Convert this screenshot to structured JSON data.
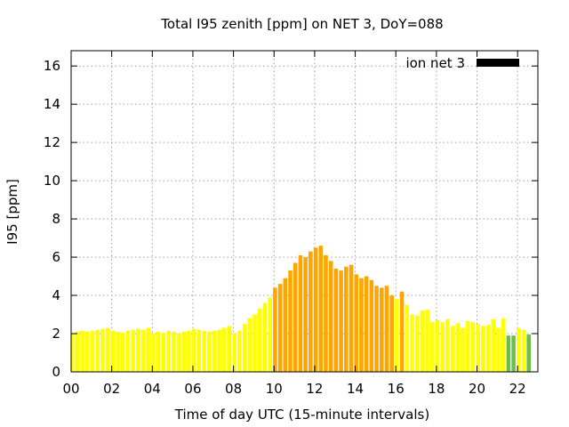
{
  "chart_data": {
    "type": "bar",
    "title": "Total I95 zenith [ppm] on NET 3, DoY=088",
    "xlabel": "Time of day UTC (15-minute intervals)",
    "ylabel": "I95 [ppm]",
    "xlim": [
      0,
      23
    ],
    "ylim": [
      0,
      16.8
    ],
    "xticks": [
      "00",
      "02",
      "04",
      "06",
      "08",
      "10",
      "12",
      "14",
      "16",
      "18",
      "20",
      "22"
    ],
    "xtick_values": [
      0,
      2,
      4,
      6,
      8,
      10,
      12,
      14,
      16,
      18,
      20,
      22
    ],
    "yticks": [
      "0",
      "2",
      "4",
      "6",
      "8",
      "10",
      "12",
      "14",
      "16"
    ],
    "ytick_values": [
      0,
      2,
      4,
      6,
      8,
      10,
      12,
      14,
      16
    ],
    "grid": true,
    "bar_width_hours": 0.2,
    "legend": {
      "label": "ion net 3",
      "color": "#000000",
      "position": "top-right"
    },
    "colors": {
      "yellow": "#ffff00",
      "orange": "#ffa500",
      "green": "#6abf4b"
    },
    "color_rule": "yellow when value < 4.1 ppm (except two isolated bars), orange when value >= 4.1 ppm, green for low-value bars late in the day",
    "x": [
      0.05,
      0.3,
      0.55,
      0.8,
      1.05,
      1.3,
      1.55,
      1.8,
      2.05,
      2.3,
      2.55,
      2.8,
      3.05,
      3.3,
      3.55,
      3.8,
      4.05,
      4.3,
      4.55,
      4.8,
      5.05,
      5.3,
      5.55,
      5.8,
      6.05,
      6.3,
      6.55,
      6.8,
      7.05,
      7.3,
      7.55,
      7.8,
      8.05,
      8.3,
      8.55,
      8.8,
      9.05,
      9.3,
      9.55,
      9.8,
      10.05,
      10.3,
      10.55,
      10.8,
      11.05,
      11.3,
      11.55,
      11.8,
      12.05,
      12.3,
      12.55,
      12.8,
      13.05,
      13.3,
      13.55,
      13.8,
      14.05,
      14.3,
      14.55,
      14.8,
      15.05,
      15.3,
      15.55,
      15.8,
      16.05,
      16.3,
      16.55,
      16.8,
      17.05,
      17.3,
      17.55,
      17.8,
      18.05,
      18.3,
      18.55,
      18.8,
      19.05,
      19.3,
      19.55,
      19.8,
      20.05,
      20.3,
      20.55,
      20.8,
      21.05,
      21.3,
      21.55,
      21.8,
      22.05,
      22.3,
      22.55
    ],
    "values": [
      2.0,
      2.1,
      2.15,
      2.1,
      2.15,
      2.2,
      2.25,
      2.3,
      2.15,
      2.1,
      2.05,
      2.15,
      2.2,
      2.25,
      2.2,
      2.3,
      2.0,
      2.1,
      2.05,
      2.15,
      2.1,
      2.0,
      2.1,
      2.15,
      2.25,
      2.2,
      2.15,
      2.1,
      2.15,
      2.2,
      2.3,
      2.4,
      2.0,
      2.15,
      2.5,
      2.8,
      3.0,
      3.3,
      3.6,
      3.9,
      4.4,
      4.6,
      4.9,
      5.3,
      5.7,
      6.1,
      6.0,
      6.3,
      6.5,
      6.6,
      6.1,
      5.8,
      5.4,
      5.3,
      5.5,
      5.6,
      5.1,
      4.9,
      5.0,
      4.8,
      4.5,
      4.4,
      4.5,
      4.0,
      3.8,
      4.2,
      3.5,
      3.0,
      2.95,
      3.2,
      3.25,
      2.6,
      2.7,
      2.6,
      2.75,
      2.4,
      2.55,
      2.3,
      2.65,
      2.6,
      2.5,
      2.4,
      2.45,
      2.75,
      2.3,
      2.8,
      1.9,
      1.9,
      2.3,
      2.2,
      1.95
    ],
    "bar_colors": [
      "yellow",
      "yellow",
      "yellow",
      "yellow",
      "yellow",
      "yellow",
      "yellow",
      "yellow",
      "yellow",
      "yellow",
      "yellow",
      "yellow",
      "yellow",
      "yellow",
      "yellow",
      "yellow",
      "yellow",
      "yellow",
      "yellow",
      "yellow",
      "yellow",
      "yellow",
      "yellow",
      "yellow",
      "yellow",
      "yellow",
      "yellow",
      "yellow",
      "yellow",
      "yellow",
      "yellow",
      "yellow",
      "yellow",
      "yellow",
      "yellow",
      "yellow",
      "yellow",
      "yellow",
      "yellow",
      "yellow",
      "orange",
      "orange",
      "orange",
      "orange",
      "orange",
      "orange",
      "orange",
      "orange",
      "orange",
      "orange",
      "orange",
      "orange",
      "orange",
      "orange",
      "orange",
      "orange",
      "orange",
      "orange",
      "orange",
      "orange",
      "orange",
      "orange",
      "orange",
      "orange",
      "yellow",
      "orange",
      "yellow",
      "yellow",
      "yellow",
      "yellow",
      "yellow",
      "yellow",
      "yellow",
      "yellow",
      "yellow",
      "yellow",
      "yellow",
      "yellow",
      "yellow",
      "yellow",
      "yellow",
      "yellow",
      "yellow",
      "yellow",
      "yellow",
      "yellow",
      "green",
      "green",
      "yellow",
      "yellow",
      "green"
    ]
  }
}
